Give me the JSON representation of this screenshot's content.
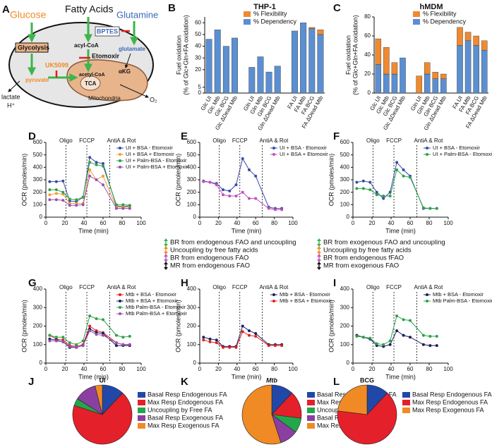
{
  "diagram": {
    "panel": "A",
    "labels": {
      "glucose": "Glucose",
      "fatty_acids": "Fatty Acids",
      "glutamine": "Glutamine",
      "bptes": "BPTES",
      "glycolysis": "Glycolysis",
      "acyl_coa": "acyl-CoA",
      "etomoxir": "Etomoxir",
      "glutamate": "glutamate",
      "uk5099": "UK5099",
      "pyruvate": "pyruvate",
      "acetyl_coa": "acetyl-CoA",
      "akg": "αKG",
      "tca": "TCA",
      "mitochondria": "Mitochondria",
      "lactate": "lactate",
      "h": "H⁺",
      "o2": "O₂"
    }
  },
  "chart_data": [
    {
      "type": "bar",
      "panel": "B",
      "title": "THP-1",
      "ylabel": [
        "Fuel oxidation",
        "(% of Glc+Gln+FA oxidation)"
      ],
      "categories": [
        "Glc UI",
        "Glc Mtb",
        "Glc BCG",
        "Glc ΔDead Mtb",
        null,
        "Gln UI",
        "Gln Mtb",
        "Gln BCG",
        "Gln ΔDead Mtb",
        null,
        "FA UI",
        "FA Mtb",
        "FA BCG",
        "FA ΔDead Mtb"
      ],
      "series": [
        {
          "name": "% Dependency",
          "color": "#5b8fd1",
          "values": [
            46,
            54,
            40,
            47,
            null,
            22,
            31,
            18,
            23,
            null,
            53,
            60,
            55,
            50
          ]
        },
        {
          "name": "% Flexibility",
          "color": "#f08a30",
          "values": [
            0,
            0,
            0,
            0,
            null,
            0,
            0,
            0,
            0,
            null,
            0,
            0,
            1,
            4
          ]
        }
      ],
      "legend_order": [
        "% Flexibility",
        "% Dependency"
      ],
      "ylim": [
        0,
        65
      ],
      "yticks": [
        0,
        5,
        20,
        30,
        40,
        50,
        60
      ]
    },
    {
      "type": "bar",
      "panel": "C",
      "title": "hMDM",
      "ylabel": [
        "Fuel oxidation",
        "(% of Glc+Gln+FA oxidation)"
      ],
      "categories": [
        "Glc UI",
        "Glc Mtb",
        "Glc BCG",
        "Glc ΔDead Mtb",
        null,
        "Gln UI",
        "Gln Mtb",
        "Gln BCG",
        "Gln ΔDead Mtb",
        null,
        "FA UI",
        "FA Mtb",
        "FA BCG",
        "FA ΔDead Mtb"
      ],
      "series": [
        {
          "name": "% Dependency",
          "color": "#5b8fd1",
          "values": [
            30,
            20,
            20,
            37,
            null,
            0,
            20,
            15,
            15,
            null,
            50,
            55,
            50,
            45
          ]
        },
        {
          "name": "% Flexibility",
          "color": "#f08a30",
          "values": [
            27,
            28,
            12,
            0,
            null,
            18,
            12,
            7,
            5,
            null,
            19,
            9,
            10,
            10
          ]
        }
      ],
      "legend_order": [
        "% Flexibility",
        "% Dependency"
      ],
      "ylim": [
        0,
        80
      ],
      "yticks": [
        0,
        20,
        40,
        60,
        80
      ]
    },
    {
      "type": "line",
      "panel": "D",
      "ylabel": "OCR (pmoles/min)",
      "xlabel": "Time (min)",
      "x": [
        4,
        11,
        18,
        25,
        32,
        39,
        46,
        53,
        60,
        74,
        81,
        88
      ],
      "events": [
        {
          "label": "Oligo",
          "x": 21
        },
        {
          "label": "FCCP",
          "x": 43
        },
        {
          "label": "AntiA & Rot",
          "x": 67
        }
      ],
      "series": [
        {
          "name": "UI + BSA - Etomoxir",
          "color": "#3a4aa8",
          "values": [
            285,
            285,
            290,
            130,
            125,
            160,
            480,
            440,
            430,
            90,
            85,
            90
          ]
        },
        {
          "name": "UI + BSA + Etomoxir",
          "color": "#f39c33",
          "values": [
            180,
            190,
            185,
            110,
            110,
            110,
            380,
            300,
            330,
            80,
            80,
            80
          ]
        },
        {
          "name": "UI + Palm-BSA - Etomoxir",
          "color": "#2ca24a",
          "values": [
            220,
            220,
            200,
            145,
            140,
            160,
            440,
            420,
            410,
            100,
            100,
            95
          ]
        },
        {
          "name": "UI + Palm-BSA + Etomoxir",
          "color": "#9b4fb0",
          "values": [
            140,
            140,
            135,
            95,
            95,
            100,
            330,
            300,
            260,
            70,
            70,
            70
          ]
        }
      ],
      "xlim": [
        0,
        100
      ],
      "xticks": [
        0,
        20,
        40,
        60,
        80,
        100
      ],
      "ylim": [
        0,
        600
      ],
      "yticks": [
        0,
        100,
        200,
        300,
        400,
        500,
        600
      ]
    },
    {
      "type": "line",
      "panel": "E",
      "ylabel": "OCR (pmoles/min)",
      "xlabel": "Time (min)",
      "x": [
        4,
        11,
        18,
        25,
        32,
        39,
        46,
        53,
        60,
        74,
        81,
        88
      ],
      "events": [
        {
          "label": "Oligo",
          "x": 21
        },
        {
          "label": "FCCP",
          "x": 43
        },
        {
          "label": "AntiA & Rot",
          "x": 67
        }
      ],
      "series": [
        {
          "name": "UI + BSA - Etomoxir",
          "color": "#3a4aa8",
          "values": [
            290,
            280,
            270,
            220,
            210,
            260,
            470,
            380,
            330,
            80,
            70,
            70
          ]
        },
        {
          "name": "UI + BSA + Etomoxir",
          "color": "#c04fc0",
          "values": [
            285,
            280,
            260,
            180,
            170,
            170,
            200,
            150,
            150,
            70,
            60,
            60
          ]
        }
      ],
      "notes": [
        "BR from endogenous FAO and uncoupling",
        "Uncoupling by free fatty acids",
        "BR from endogenous FAO",
        "MR from endogenous FAO"
      ],
      "xlim": [
        0,
        100
      ],
      "xticks": [
        0,
        20,
        40,
        60,
        80,
        100
      ],
      "ylim": [
        0,
        600
      ],
      "yticks": [
        0,
        100,
        200,
        300,
        400,
        500,
        600
      ]
    },
    {
      "type": "line",
      "panel": "F",
      "ylabel": "OCR (pmoles/min)",
      "xlabel": "Time (min)",
      "x": [
        4,
        11,
        18,
        25,
        32,
        39,
        46,
        53,
        60,
        74,
        81,
        88
      ],
      "events": [
        {
          "label": "Oligo",
          "x": 21
        },
        {
          "label": "FCCP",
          "x": 43
        },
        {
          "label": "AntiA & Rot",
          "x": 67
        }
      ],
      "series": [
        {
          "name": "UI + BSA - Etomoxir",
          "color": "#3a4aa8",
          "values": [
            280,
            290,
            280,
            200,
            150,
            200,
            440,
            380,
            330,
            70,
            70,
            70
          ]
        },
        {
          "name": "UI + Palm-BSA - Etomoxir",
          "color": "#2ca24a",
          "values": [
            230,
            230,
            220,
            180,
            170,
            170,
            380,
            330,
            320,
            75,
            70,
            70
          ]
        }
      ],
      "notes": [
        "BR from exogenous FAO and uncoupling",
        "Uncoupling by free fatty acids",
        "BR from endogenous fFAO",
        "MR from exogenous FAO"
      ],
      "xlim": [
        0,
        100
      ],
      "xticks": [
        0,
        20,
        40,
        60,
        80,
        100
      ],
      "ylim": [
        0,
        600
      ],
      "yticks": [
        0,
        100,
        200,
        300,
        400,
        500,
        600
      ]
    },
    {
      "type": "line",
      "panel": "G",
      "ylabel": "OCR (pmoles/min)",
      "xlabel": "Time (min)",
      "x": [
        4,
        11,
        18,
        25,
        32,
        39,
        46,
        53,
        60,
        74,
        81,
        88
      ],
      "events": [
        {
          "label": "Oligo",
          "x": 21
        },
        {
          "label": "FCCP",
          "x": 43
        },
        {
          "label": "AntiA & Rot",
          "x": 67
        }
      ],
      "series": [
        {
          "name": "Mtb + BSA - Etomoxir",
          "color": "#e02020",
          "values": [
            150,
            130,
            125,
            95,
            90,
            100,
            200,
            175,
            165,
            110,
            100,
            100
          ]
        },
        {
          "name": "Mtb + BSA + Etomoxir",
          "color": "#1b1f5e",
          "values": [
            130,
            125,
            115,
            85,
            85,
            95,
            185,
            165,
            160,
            95,
            95,
            95
          ]
        },
        {
          "name": "Mtb Palm-BSA - Etomoxir",
          "color": "#2ca24a",
          "values": [
            150,
            140,
            140,
            110,
            100,
            120,
            255,
            240,
            235,
            150,
            140,
            145
          ]
        },
        {
          "name": "Mtb Palm-BSA + Etomoxir",
          "color": "#9b4fb0",
          "values": [
            120,
            120,
            115,
            90,
            85,
            95,
            175,
            155,
            150,
            110,
            100,
            100
          ]
        }
      ],
      "xlim": [
        0,
        100
      ],
      "xticks": [
        0,
        20,
        40,
        60,
        80,
        100
      ],
      "ylim": [
        0,
        400
      ],
      "yticks": [
        0,
        100,
        200,
        300,
        400
      ]
    },
    {
      "type": "line",
      "panel": "H",
      "ylabel": "OCR (pmoles/min)",
      "xlabel": "Time (min)",
      "x": [
        4,
        11,
        18,
        25,
        32,
        39,
        46,
        53,
        60,
        74,
        81,
        88
      ],
      "events": [
        {
          "label": "Oligo",
          "x": 21
        },
        {
          "label": "FCCP",
          "x": 43
        },
        {
          "label": "AntiA & Rot",
          "x": 67
        }
      ],
      "series": [
        {
          "name": "Mtb + BSA - Etomoxir",
          "color": "#1b1f5e",
          "values": [
            140,
            130,
            125,
            90,
            90,
            90,
            200,
            175,
            160,
            100,
            100,
            100
          ]
        },
        {
          "name": "Mtb + BSA + Etomoxir",
          "color": "#e02020",
          "values": [
            125,
            115,
            110,
            85,
            85,
            85,
            170,
            150,
            145,
            95,
            95,
            95
          ]
        }
      ],
      "xlim": [
        0,
        100
      ],
      "xticks": [
        0,
        20,
        40,
        60,
        80,
        100
      ],
      "ylim": [
        0,
        400
      ],
      "yticks": [
        0,
        100,
        200,
        300,
        400
      ]
    },
    {
      "type": "line",
      "panel": "I",
      "ylabel": "OCR (pmoles/min)",
      "xlabel": "Time (min)",
      "x": [
        4,
        11,
        18,
        25,
        32,
        39,
        46,
        53,
        60,
        74,
        81,
        88
      ],
      "events": [
        {
          "label": "Oligo",
          "x": 21
        },
        {
          "label": "FCCP",
          "x": 43
        },
        {
          "label": "AntiA & Rot",
          "x": 67
        }
      ],
      "series": [
        {
          "name": "Mtb + BSA - Etomoxir",
          "color": "#1b1f5e",
          "values": [
            150,
            140,
            130,
            95,
            90,
            100,
            175,
            150,
            140,
            100,
            95,
            95
          ]
        },
        {
          "name": "Mtb Palm-BSA - Etomoxir",
          "color": "#2ca24a",
          "values": [
            145,
            140,
            135,
            105,
            100,
            120,
            255,
            235,
            230,
            150,
            145,
            145
          ]
        }
      ],
      "xlim": [
        0,
        100
      ],
      "xticks": [
        0,
        20,
        40,
        60,
        80,
        100
      ],
      "ylim": [
        0,
        400
      ],
      "yticks": [
        0,
        100,
        200,
        300,
        400
      ]
    },
    {
      "type": "pie",
      "panel": "J",
      "title": "UI",
      "categories": [
        "Basal Resp Endogenous FA",
        "Max Resp Endogenous FA",
        "Uncoupling by Free FA",
        "Basal Resp Exogenous FA",
        "Max Resp Exogenous FA"
      ],
      "values": [
        12,
        68,
        4,
        12,
        4
      ],
      "colors": [
        "#2148a8",
        "#e4202a",
        "#22a84a",
        "#8b3fa0",
        "#f08a25"
      ]
    },
    {
      "type": "pie",
      "panel": "K",
      "title": "Mtb",
      "categories": [
        "Basal Resp Endogenous FA",
        "Max Resp Endogenous FA",
        "Uncoupling by Free FA",
        "Basal Resp Exogenous FA",
        "Max Resp Exogenous FA"
      ],
      "values": [
        12,
        15,
        8,
        10,
        55
      ],
      "colors": [
        "#2148a8",
        "#e4202a",
        "#22a84a",
        "#8b3fa0",
        "#f08a25"
      ]
    },
    {
      "type": "pie",
      "panel": "L",
      "title": "BCG",
      "categories": [
        "Basal Resp Endogenous FA",
        "Max Resp Endogenous FA",
        "Max Resp Exogenous FA"
      ],
      "values": [
        12,
        65,
        23
      ],
      "colors": [
        "#2148a8",
        "#e4202a",
        "#f08a25"
      ]
    }
  ]
}
